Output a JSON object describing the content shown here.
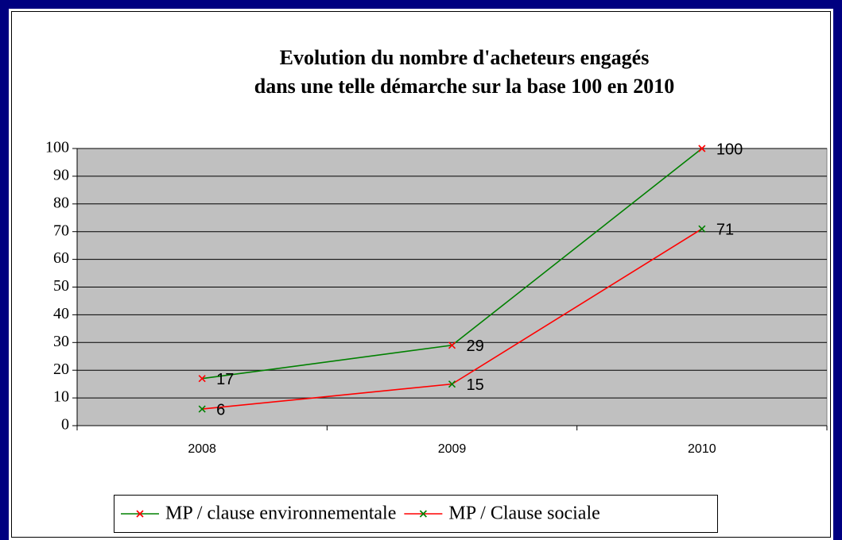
{
  "chart_data": {
    "type": "line",
    "title": "Evolution du nombre d'acheteurs engagés",
    "subtitle": "dans une telle démarche sur la base 100 en 2010",
    "categories": [
      "2008",
      "2009",
      "2010"
    ],
    "series": [
      {
        "name": "MP / clause environnementale",
        "color": "#008000",
        "marker_color": "#ff0000",
        "values": [
          17,
          29,
          100
        ]
      },
      {
        "name": "MP / Clause sociale",
        "color": "#ff0000",
        "marker_color": "#008000",
        "values": [
          6,
          15,
          71
        ]
      }
    ],
    "ylim": [
      0,
      100
    ],
    "yticks": [
      0,
      10,
      20,
      30,
      40,
      50,
      60,
      70,
      80,
      90,
      100
    ],
    "grid": true,
    "legend": "bottom",
    "plot_background": "#c0c0c0"
  }
}
